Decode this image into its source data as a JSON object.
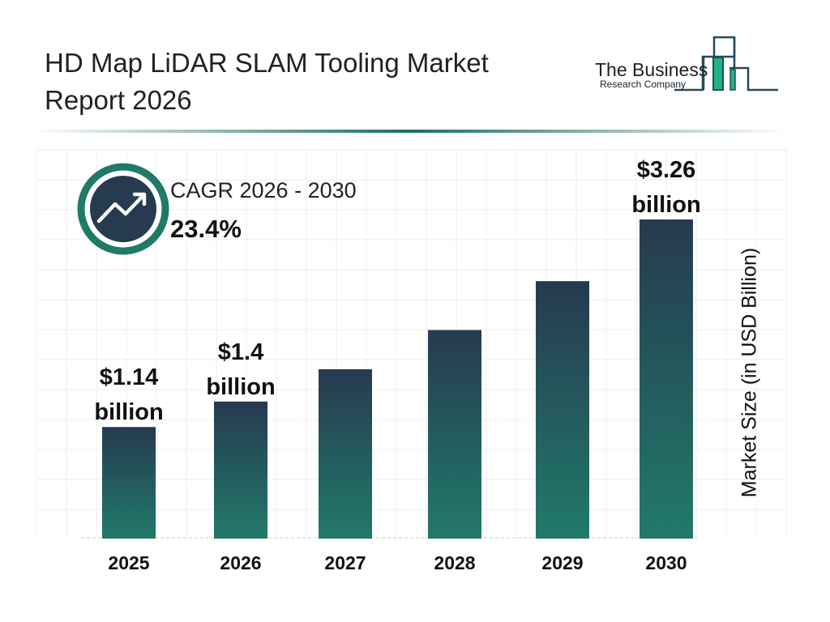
{
  "title": "HD Map LiDAR SLAM Tooling Market Report 2026",
  "logo": {
    "line1": "The Business",
    "line2": "Research Company"
  },
  "cagr": {
    "label": "CAGR 2026 - 2030",
    "value": "23.4%",
    "icon": "trend-up-icon"
  },
  "colors": {
    "bar_top": "#263a50",
    "bar_bottom": "#217a6a",
    "accent": "#1f7a68",
    "logo_green": "#1db584"
  },
  "chart_data": {
    "type": "bar",
    "categories": [
      "2025",
      "2026",
      "2027",
      "2028",
      "2029",
      "2030"
    ],
    "values": [
      1.14,
      1.4,
      1.73,
      2.13,
      2.63,
      3.26
    ],
    "data_labels": [
      [
        "$1.14",
        "billion"
      ],
      [
        "$1.4",
        "billion"
      ],
      null,
      null,
      null,
      [
        "$3.26",
        "billion"
      ]
    ],
    "ylabel": "Market Size (in USD Billion)",
    "xlabel": "",
    "grid": true
  }
}
